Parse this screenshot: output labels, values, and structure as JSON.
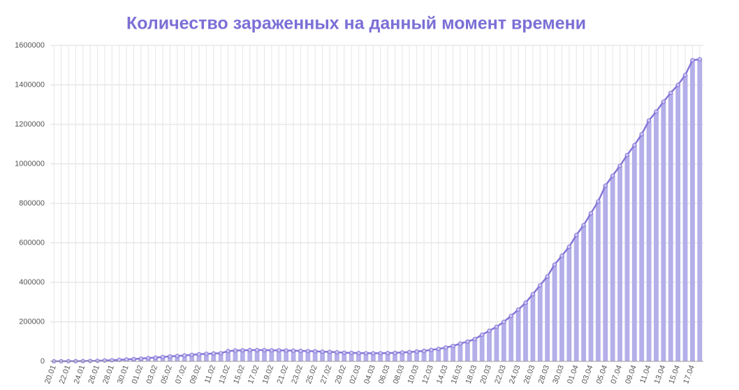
{
  "chart_data": {
    "type": "bar",
    "title": "Количество зараженных на данный момент времени",
    "categories": [
      "20.01",
      null,
      "22.01",
      null,
      "24.01",
      null,
      "26.01",
      null,
      "28.01",
      null,
      "30.01",
      null,
      "01.02",
      null,
      "03.02",
      null,
      "05.02",
      null,
      "07.02",
      null,
      "09.02",
      null,
      "11.02",
      null,
      "13.02",
      null,
      "15.02",
      null,
      "17.02",
      null,
      "19.02",
      null,
      "21.02",
      null,
      "23.02",
      null,
      "25.02",
      null,
      "27.02",
      null,
      "29.02",
      null,
      "02.03",
      null,
      "04.03",
      null,
      "06.03",
      null,
      "08.03",
      null,
      "10.03",
      null,
      "12.03",
      null,
      "14.03",
      null,
      "16.03",
      null,
      "18.03",
      null,
      "20.03",
      null,
      "22.03",
      null,
      "24.03",
      null,
      "26.03",
      null,
      "28.03",
      null,
      "30.03",
      null,
      "01.04",
      null,
      "03.04",
      null,
      "05.04",
      null,
      "07.04",
      null,
      "09.04",
      null,
      "11.04",
      null,
      "13.04",
      null,
      "15.04",
      null,
      "17.04",
      null
    ],
    "values": [
      300,
      500,
      600,
      900,
      1300,
      2000,
      2700,
      4500,
      5500,
      7400,
      9500,
      11500,
      14000,
      16500,
      19000,
      22000,
      25000,
      27000,
      30000,
      33000,
      36000,
      38000,
      40000,
      41000,
      52000,
      55000,
      56000,
      57000,
      57000,
      57000,
      56000,
      56000,
      55000,
      54000,
      53000,
      52000,
      51000,
      49000,
      48000,
      46000,
      44000,
      43000,
      42000,
      41000,
      41000,
      41000,
      42000,
      43000,
      45000,
      47000,
      50000,
      53000,
      58000,
      63000,
      70000,
      78000,
      90000,
      100000,
      113000,
      135000,
      155000,
      175000,
      200000,
      230000,
      262000,
      297000,
      340000,
      385000,
      430000,
      490000,
      535000,
      580000,
      640000,
      690000,
      750000,
      810000,
      890000,
      940000,
      990000,
      1045000,
      1095000,
      1150000,
      1220000,
      1265000,
      1315000,
      1360000,
      1400000,
      1450000,
      1525000,
      1530000
    ],
    "color": "#b4afe9",
    "line_color": "#8576d8",
    "ylim": [
      0,
      1600000
    ],
    "yticks": [
      0,
      200000,
      400000,
      600000,
      800000,
      1000000,
      1200000,
      1400000,
      1600000
    ],
    "grid": true
  }
}
